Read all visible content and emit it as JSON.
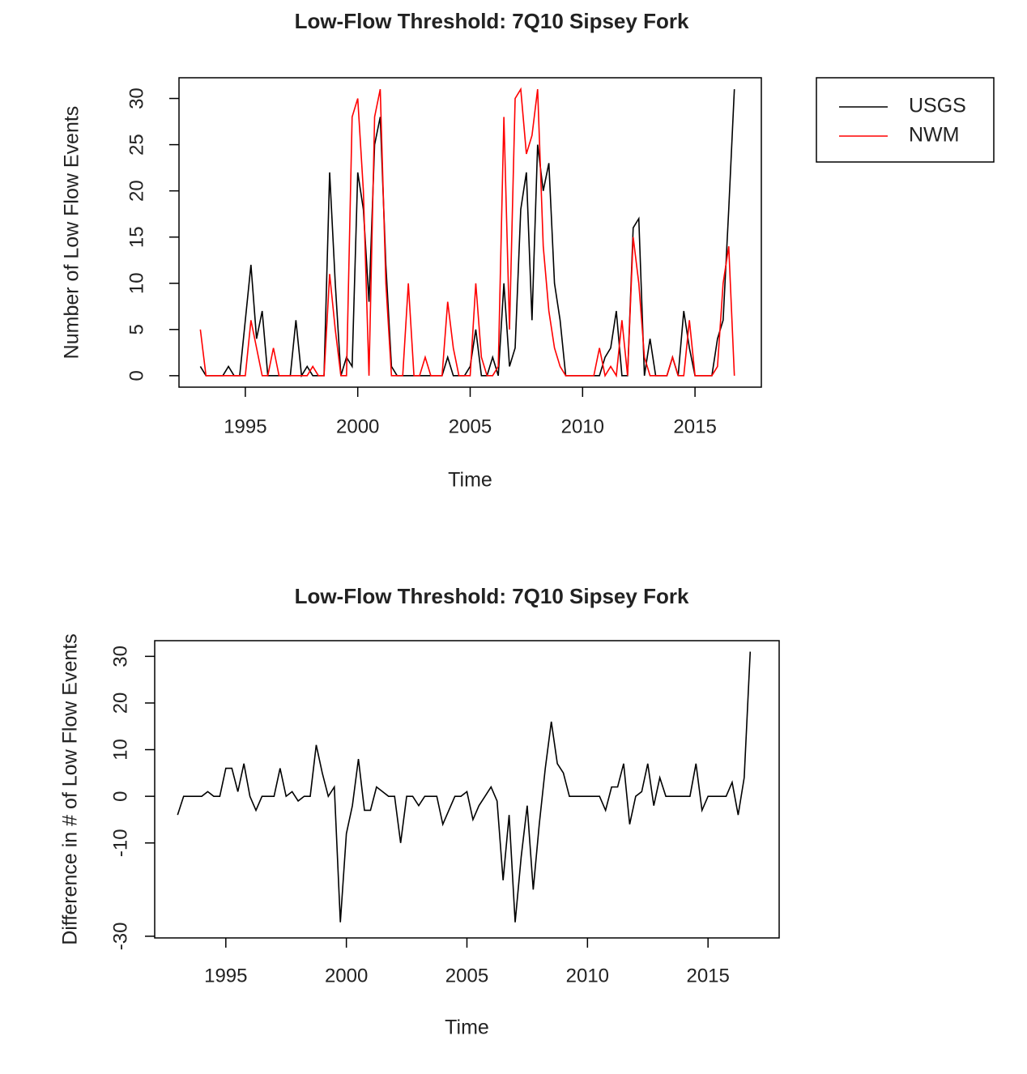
{
  "chart_data": [
    {
      "type": "line",
      "title": "Low-Flow Threshold: 7Q10 Sipsey Fork",
      "x_label": "Time",
      "y_label": "Number of Low Flow Events",
      "x": [
        1993,
        1993.25,
        1993.5,
        1993.75,
        1994,
        1994.25,
        1994.5,
        1994.75,
        1995,
        1995.25,
        1995.5,
        1995.75,
        1996,
        1996.25,
        1996.5,
        1996.75,
        1997,
        1997.25,
        1997.5,
        1997.75,
        1998,
        1998.25,
        1998.5,
        1998.75,
        1999,
        1999.25,
        1999.5,
        1999.75,
        2000,
        2000.25,
        2000.5,
        2000.75,
        2001,
        2001.25,
        2001.5,
        2001.75,
        2002,
        2002.25,
        2002.5,
        2002.75,
        2003,
        2003.25,
        2003.5,
        2003.75,
        2004,
        2004.25,
        2004.5,
        2004.75,
        2005,
        2005.25,
        2005.5,
        2005.75,
        2006,
        2006.25,
        2006.5,
        2006.75,
        2007,
        2007.25,
        2007.5,
        2007.75,
        2008,
        2008.25,
        2008.5,
        2008.75,
        2009,
        2009.25,
        2009.5,
        2009.75,
        2010,
        2010.25,
        2010.5,
        2010.75,
        2011,
        2011.25,
        2011.5,
        2011.75,
        2012,
        2012.25,
        2012.5,
        2012.75,
        2013,
        2013.25,
        2013.5,
        2013.75,
        2014,
        2014.25,
        2014.5,
        2014.75,
        2015,
        2015.25,
        2015.5,
        2015.75,
        2016,
        2016.25,
        2016.5,
        2016.75
      ],
      "xlim": [
        1992.05,
        2017.95
      ],
      "xticks": [
        1995,
        2000,
        2005,
        2010,
        2015
      ],
      "ylim": [
        -1.24,
        32.24
      ],
      "yticks": [
        0,
        5,
        10,
        15,
        20,
        25,
        30
      ],
      "legend": "right",
      "series": [
        {
          "name": "USGS",
          "color": "#000000",
          "values": [
            1,
            0,
            0,
            0,
            0,
            1,
            0,
            0,
            6,
            12,
            4,
            7,
            0,
            0,
            0,
            0,
            0,
            6,
            0,
            1,
            0,
            0,
            0,
            22,
            10,
            0,
            2,
            1,
            22,
            18,
            8,
            25,
            28,
            12,
            1,
            0,
            0,
            0,
            0,
            0,
            0,
            0,
            0,
            0,
            2,
            0,
            0,
            0,
            1,
            5,
            0,
            0,
            2,
            0,
            10,
            1,
            3,
            18,
            22,
            6,
            25,
            20,
            23,
            10,
            6,
            0,
            0,
            0,
            0,
            0,
            0,
            0,
            2,
            3,
            7,
            0,
            0,
            16,
            17,
            0,
            4,
            0,
            0,
            0,
            2,
            0,
            7,
            3,
            0,
            0,
            0,
            0,
            4,
            6,
            18,
            31
          ]
        },
        {
          "name": "NWM",
          "color": "#ff0000",
          "values": [
            5,
            0,
            0,
            0,
            0,
            0,
            0,
            0,
            0,
            6,
            3,
            0,
            0,
            3,
            0,
            0,
            0,
            0,
            0,
            0,
            1,
            0,
            0,
            11,
            5,
            0,
            0,
            28,
            30,
            20,
            0,
            28,
            31,
            10,
            0,
            0,
            0,
            10,
            0,
            0,
            2,
            0,
            0,
            0,
            8,
            3,
            0,
            0,
            0,
            10,
            2,
            0,
            0,
            1,
            28,
            5,
            30,
            31,
            24,
            26,
            31,
            14,
            7,
            3,
            1,
            0,
            0,
            0,
            0,
            0,
            0,
            3,
            0,
            1,
            0,
            6,
            0,
            15,
            10,
            2,
            0,
            0,
            0,
            0,
            2,
            0,
            0,
            6,
            0,
            0,
            0,
            0,
            1,
            10,
            14,
            0
          ]
        }
      ]
    },
    {
      "type": "line",
      "title": "Low-Flow Threshold: 7Q10 Sipsey Fork",
      "x_label": "Time",
      "y_label": "Difference in # of Low Flow Events",
      "x": [
        1993,
        1993.25,
        1993.5,
        1993.75,
        1994,
        1994.25,
        1994.5,
        1994.75,
        1995,
        1995.25,
        1995.5,
        1995.75,
        1996,
        1996.25,
        1996.5,
        1996.75,
        1997,
        1997.25,
        1997.5,
        1997.75,
        1998,
        1998.25,
        1998.5,
        1998.75,
        1999,
        1999.25,
        1999.5,
        1999.75,
        2000,
        2000.25,
        2000.5,
        2000.75,
        2001,
        2001.25,
        2001.5,
        2001.75,
        2002,
        2002.25,
        2002.5,
        2002.75,
        2003,
        2003.25,
        2003.5,
        2003.75,
        2004,
        2004.25,
        2004.5,
        2004.75,
        2005,
        2005.25,
        2005.5,
        2005.75,
        2006,
        2006.25,
        2006.5,
        2006.75,
        2007,
        2007.25,
        2007.5,
        2007.75,
        2008,
        2008.25,
        2008.5,
        2008.75,
        2009,
        2009.25,
        2009.5,
        2009.75,
        2010,
        2010.25,
        2010.5,
        2010.75,
        2011,
        2011.25,
        2011.5,
        2011.75,
        2012,
        2012.25,
        2012.5,
        2012.75,
        2013,
        2013.25,
        2013.5,
        2013.75,
        2014,
        2014.25,
        2014.5,
        2014.75,
        2015,
        2015.25,
        2015.5,
        2015.75,
        2016,
        2016.25,
        2016.5,
        2016.75
      ],
      "xlim": [
        1992.05,
        2017.95
      ],
      "xticks": [
        1995,
        2000,
        2005,
        2010,
        2015
      ],
      "ylim": [
        -30.36,
        33.36
      ],
      "yticks": [
        -30,
        -10,
        0,
        10,
        20,
        30
      ],
      "series": [
        {
          "color": "#000000",
          "values": [
            -4,
            0,
            0,
            0,
            0,
            1,
            0,
            0,
            6,
            6,
            1,
            7,
            0,
            -3,
            0,
            0,
            0,
            6,
            0,
            1,
            -1,
            0,
            0,
            11,
            5,
            0,
            2,
            -27,
            -8,
            -2,
            8,
            -3,
            -3,
            2,
            1,
            0,
            0,
            -10,
            0,
            0,
            -2,
            0,
            0,
            0,
            -6,
            -3,
            0,
            0,
            1,
            -5,
            -2,
            0,
            2,
            -1,
            -18,
            -4,
            -27,
            -13,
            -2,
            -20,
            -6,
            6,
            16,
            7,
            5,
            0,
            0,
            0,
            0,
            0,
            0,
            -3,
            2,
            2,
            7,
            -6,
            0,
            1,
            7,
            -2,
            4,
            0,
            0,
            0,
            0,
            0,
            7,
            -3,
            0,
            0,
            0,
            0,
            3,
            -4,
            4,
            31
          ]
        }
      ]
    }
  ]
}
